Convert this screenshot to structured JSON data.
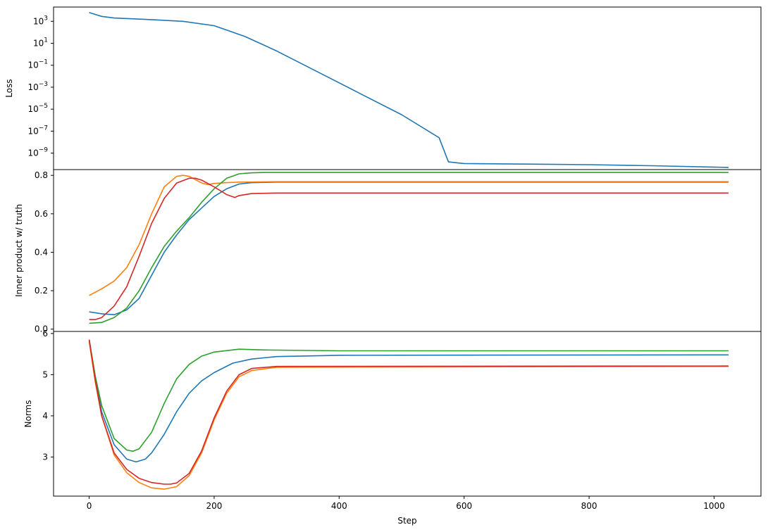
{
  "chart_data": [
    {
      "type": "line",
      "panel": "loss",
      "ylabel": "Loss",
      "xlabel": "",
      "yscale": "log",
      "xlim": [
        -57,
        1075
      ],
      "ylim_exp": [
        -10.5,
        4.3
      ],
      "yticks": [
        {
          "base": "10",
          "exp": "3",
          "value": 3
        },
        {
          "base": "10",
          "exp": "1",
          "value": 1
        },
        {
          "base": "10",
          "exp": "−1",
          "value": -1
        },
        {
          "base": "10",
          "exp": "−3",
          "value": -3
        },
        {
          "base": "10",
          "exp": "−5",
          "value": -5
        },
        {
          "base": "10",
          "exp": "−7",
          "value": -7
        },
        {
          "base": "10",
          "exp": "−9",
          "value": -9
        }
      ],
      "series": [
        {
          "color": "#1f77b4",
          "x": [
            0,
            20,
            40,
            100,
            150,
            200,
            225,
            250,
            300,
            400,
            500,
            560,
            575,
            600,
            700,
            800,
            900,
            1023
          ],
          "log10_y": [
            3.8,
            3.45,
            3.3,
            3.15,
            3.0,
            2.6,
            2.1,
            1.6,
            0.3,
            -2.6,
            -5.5,
            -7.6,
            -9.8,
            -9.95,
            -10.0,
            -10.05,
            -10.15,
            -10.3
          ]
        }
      ]
    },
    {
      "type": "line",
      "panel": "inner",
      "ylabel": "Inner product w/ truth",
      "xlabel": "",
      "xlim": [
        -57,
        1075
      ],
      "ylim": [
        -0.012,
        0.83
      ],
      "yticks": [
        "0.0",
        "0.2",
        "0.4",
        "0.6",
        "0.8"
      ],
      "ytick_values": [
        0.0,
        0.2,
        0.4,
        0.6,
        0.8
      ],
      "series": [
        {
          "color": "#1f77b4",
          "x": [
            0,
            20,
            40,
            60,
            80,
            100,
            120,
            140,
            160,
            180,
            200,
            220,
            240,
            260,
            300,
            1023
          ],
          "y": [
            0.09,
            0.08,
            0.075,
            0.1,
            0.16,
            0.28,
            0.4,
            0.49,
            0.57,
            0.63,
            0.69,
            0.73,
            0.755,
            0.762,
            0.765,
            0.765
          ]
        },
        {
          "color": "#ff7f0e",
          "x": [
            0,
            20,
            40,
            60,
            80,
            100,
            120,
            140,
            150,
            160,
            180,
            190,
            200,
            220,
            240,
            300,
            1023
          ],
          "y": [
            0.175,
            0.21,
            0.25,
            0.32,
            0.44,
            0.6,
            0.74,
            0.795,
            0.8,
            0.795,
            0.76,
            0.752,
            0.758,
            0.762,
            0.765,
            0.767,
            0.767
          ]
        },
        {
          "color": "#2ca02c",
          "x": [
            0,
            20,
            40,
            60,
            80,
            100,
            120,
            140,
            160,
            180,
            200,
            220,
            240,
            260,
            280,
            300,
            1023
          ],
          "y": [
            0.03,
            0.035,
            0.06,
            0.11,
            0.2,
            0.32,
            0.43,
            0.51,
            0.58,
            0.66,
            0.73,
            0.785,
            0.808,
            0.813,
            0.815,
            0.815,
            0.815
          ]
        },
        {
          "color": "#d62728",
          "x": [
            0,
            10,
            20,
            40,
            60,
            80,
            100,
            120,
            140,
            160,
            170,
            180,
            200,
            220,
            233,
            240,
            260,
            300,
            1023
          ],
          "y": [
            0.05,
            0.05,
            0.06,
            0.12,
            0.22,
            0.38,
            0.55,
            0.68,
            0.76,
            0.785,
            0.785,
            0.775,
            0.74,
            0.7,
            0.685,
            0.695,
            0.705,
            0.708,
            0.708
          ]
        }
      ]
    },
    {
      "type": "line",
      "panel": "norms",
      "ylabel": "Norms",
      "xlabel": "Step",
      "xlim": [
        -57,
        1075
      ],
      "ylim": [
        2.05,
        6.05
      ],
      "xticks": [
        "0",
        "200",
        "400",
        "600",
        "800",
        "1000"
      ],
      "xtick_values": [
        0,
        200,
        400,
        600,
        800,
        1000
      ],
      "yticks": [
        "3",
        "4",
        "5",
        "6"
      ],
      "ytick_values": [
        3,
        4,
        5,
        6
      ],
      "series": [
        {
          "color": "#1f77b4",
          "x": [
            0,
            10,
            20,
            40,
            60,
            75,
            90,
            100,
            120,
            140,
            160,
            180,
            200,
            230,
            260,
            300,
            400,
            1023
          ],
          "y": [
            5.85,
            4.9,
            4.1,
            3.3,
            2.95,
            2.88,
            2.95,
            3.1,
            3.55,
            4.1,
            4.55,
            4.85,
            5.05,
            5.28,
            5.38,
            5.44,
            5.47,
            5.48
          ]
        },
        {
          "color": "#ff7f0e",
          "x": [
            0,
            10,
            20,
            40,
            60,
            80,
            100,
            120,
            140,
            160,
            180,
            200,
            220,
            240,
            260,
            300,
            1023
          ],
          "y": [
            5.8,
            4.8,
            4.0,
            3.05,
            2.62,
            2.38,
            2.25,
            2.22,
            2.28,
            2.55,
            3.1,
            3.9,
            4.55,
            4.95,
            5.1,
            5.18,
            5.2
          ]
        },
        {
          "color": "#2ca02c",
          "x": [
            0,
            10,
            20,
            40,
            60,
            70,
            80,
            100,
            120,
            140,
            160,
            180,
            200,
            240,
            280,
            400,
            1023
          ],
          "y": [
            5.85,
            4.95,
            4.25,
            3.45,
            3.17,
            3.14,
            3.2,
            3.6,
            4.3,
            4.9,
            5.25,
            5.45,
            5.55,
            5.62,
            5.6,
            5.58,
            5.58
          ]
        },
        {
          "color": "#d62728",
          "x": [
            0,
            10,
            20,
            40,
            60,
            80,
            100,
            120,
            130,
            140,
            160,
            180,
            200,
            220,
            240,
            260,
            300,
            1023
          ],
          "y": [
            5.85,
            4.85,
            4.0,
            3.1,
            2.7,
            2.48,
            2.38,
            2.34,
            2.34,
            2.37,
            2.6,
            3.15,
            3.95,
            4.6,
            5.0,
            5.15,
            5.2,
            5.21
          ]
        }
      ]
    }
  ]
}
